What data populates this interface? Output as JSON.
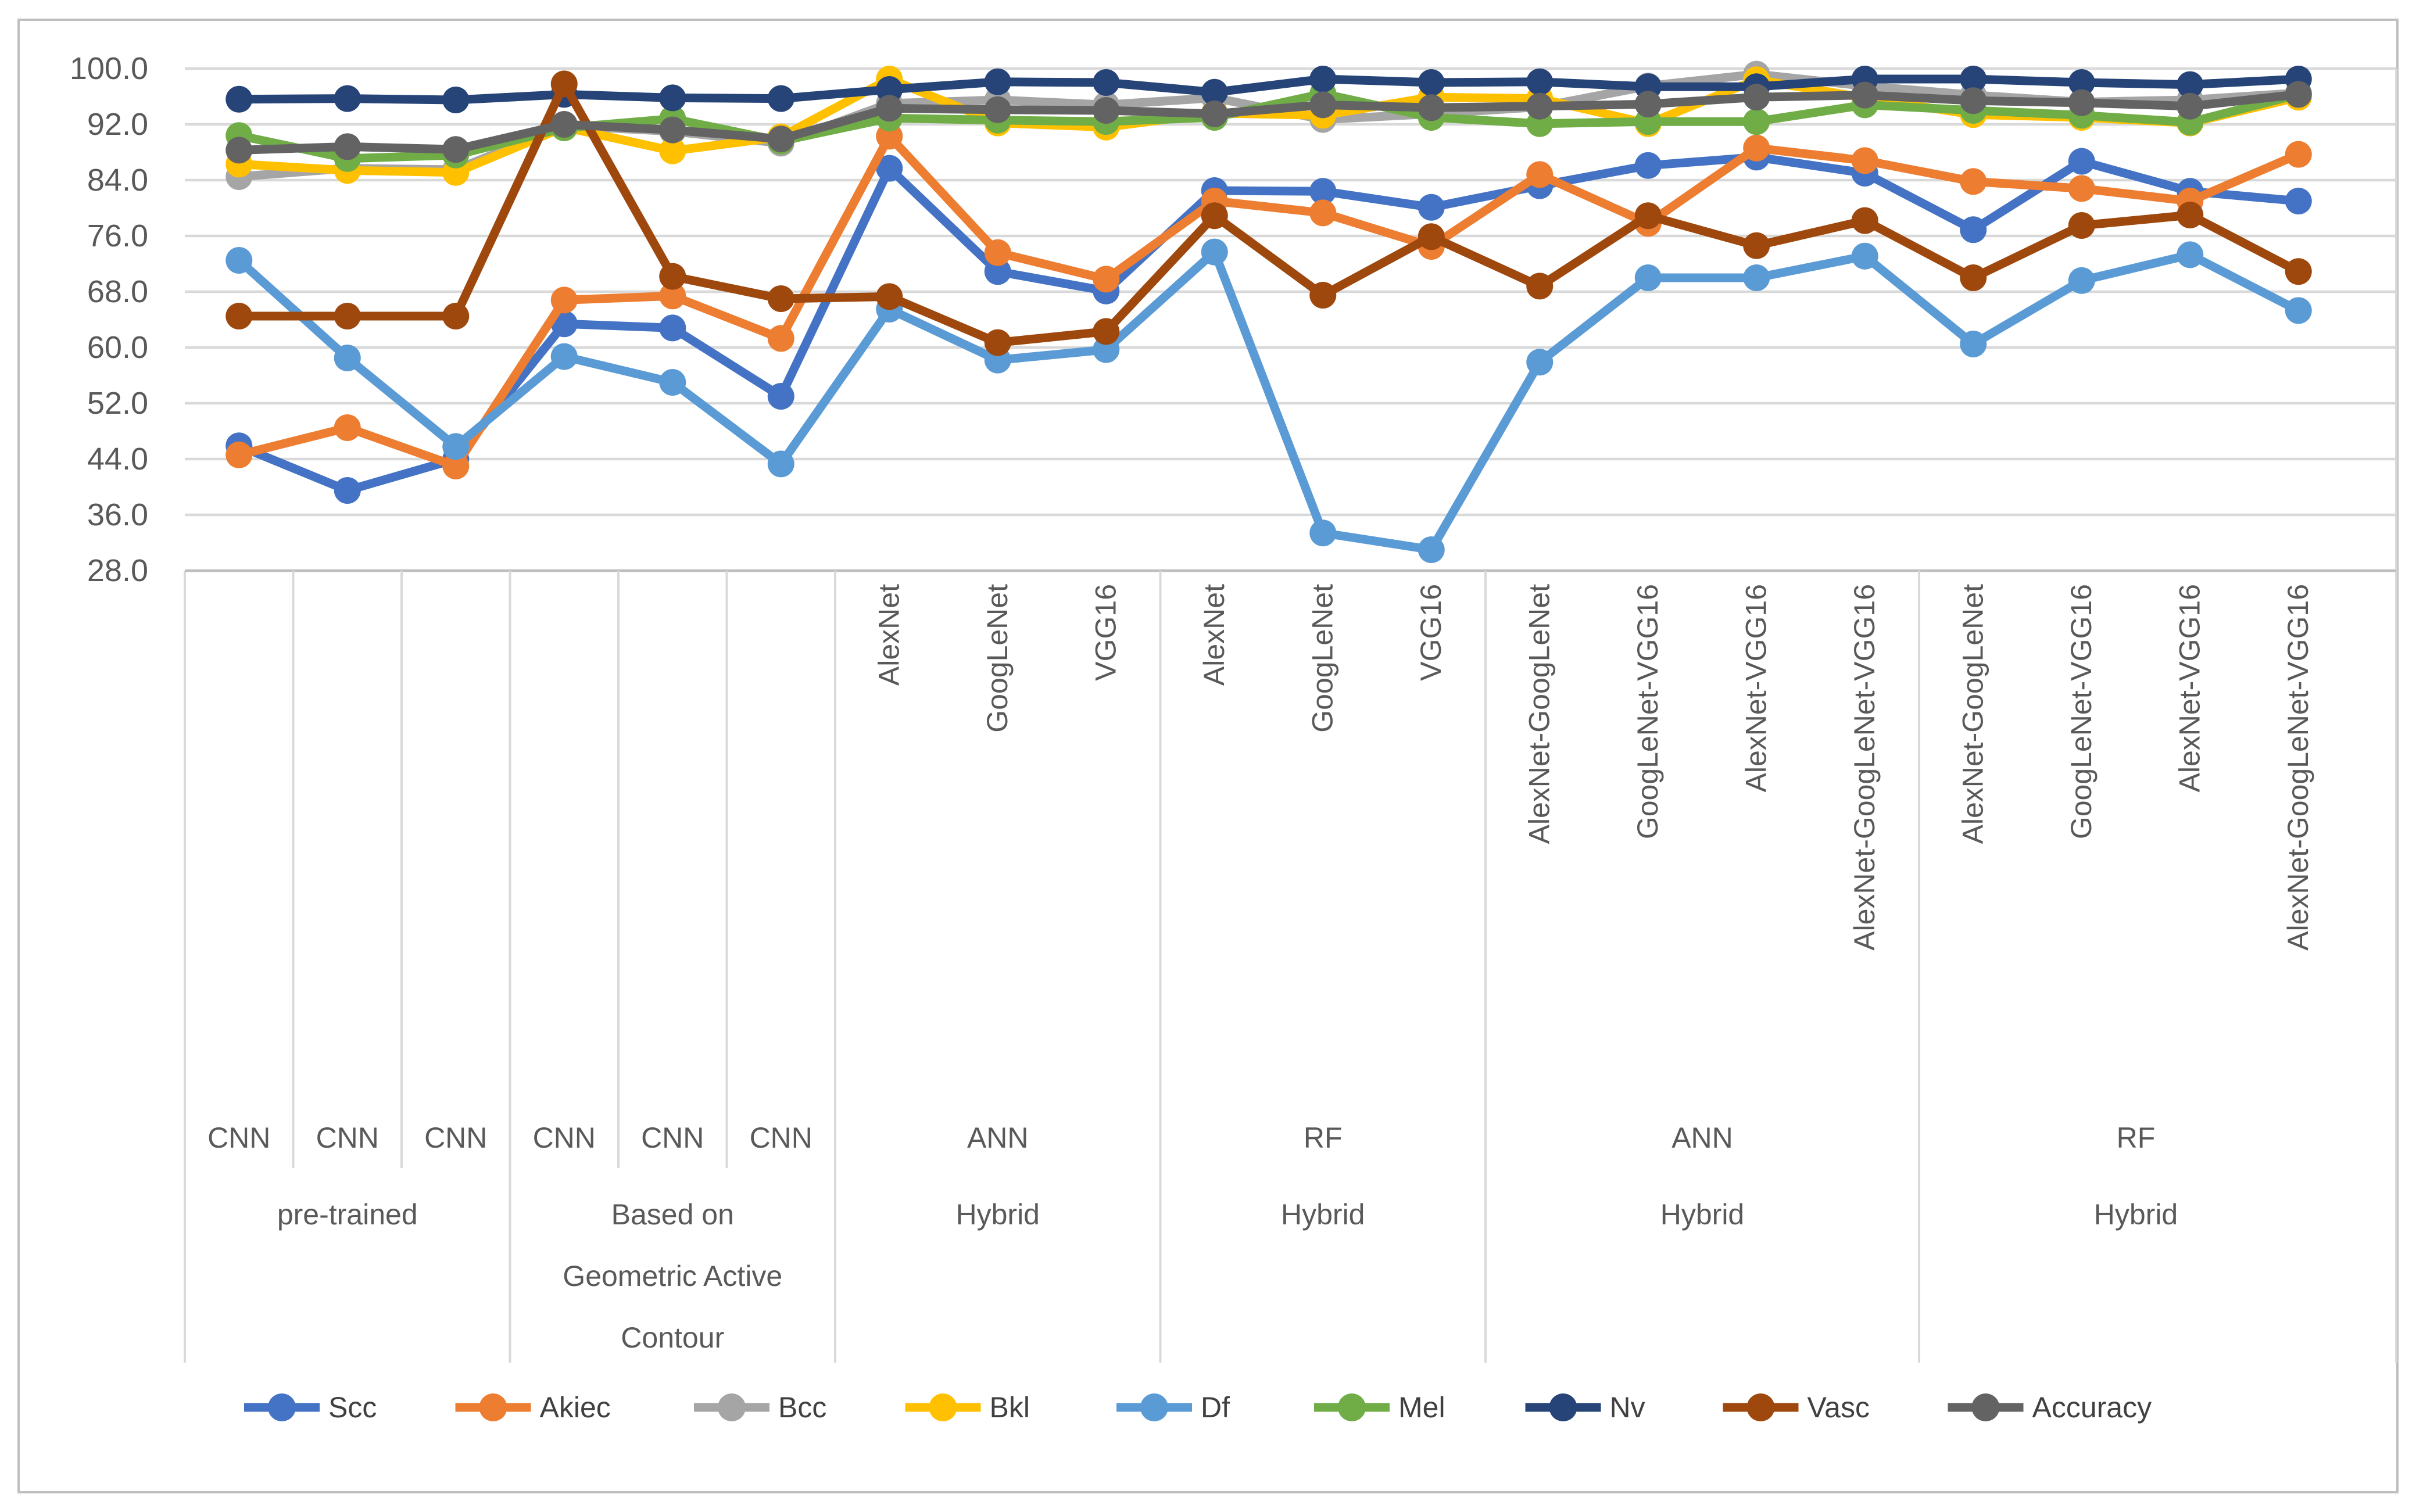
{
  "chart_data": {
    "type": "line",
    "title": "",
    "grid": true,
    "legend_position": "bottom",
    "y_axis": {
      "min": 28.0,
      "max": 100.0,
      "tick_step": 8.0,
      "tick_labels": [
        "100.0",
        "92.0",
        "84.0",
        "76.0",
        "68.0",
        "60.0",
        "52.0",
        "44.0",
        "36.0",
        "28.0"
      ]
    },
    "x_axis": {
      "tech_labels": [
        "",
        "",
        "",
        "",
        "",
        "",
        "AlexNet",
        "GoogLeNet",
        "VGG16",
        "AlexNet",
        "GoogLeNet",
        "VGG16",
        "AlexNet-GoogLeNet",
        "GoogLeNet-VGG16",
        "AlexNet-VGG16",
        "AlexNet-GoogLeNet-VGG16",
        "AlexNet-GoogLeNet",
        "GoogLeNet-VGG16",
        "AlexNet-VGG16",
        "AlexNet-GoogLeNet-VGG16"
      ],
      "algo_row": [
        {
          "label": "CNN",
          "start": 0,
          "end": 1
        },
        {
          "label": "CNN",
          "start": 1,
          "end": 2
        },
        {
          "label": "CNN",
          "start": 2,
          "end": 3
        },
        {
          "label": "CNN",
          "start": 3,
          "end": 4
        },
        {
          "label": "CNN",
          "start": 4,
          "end": 5
        },
        {
          "label": "CNN",
          "start": 5,
          "end": 6
        },
        {
          "label": "ANN",
          "start": 6,
          "end": 9
        },
        {
          "label": "RF",
          "start": 9,
          "end": 12
        },
        {
          "label": "ANN",
          "start": 12,
          "end": 16
        },
        {
          "label": "RF",
          "start": 16,
          "end": 20
        }
      ],
      "group_row": [
        {
          "lines": [
            "pre-trained"
          ],
          "start": 0,
          "end": 3
        },
        {
          "lines": [
            "Based on",
            "Geometric Active",
            "Contour"
          ],
          "start": 3,
          "end": 6
        },
        {
          "lines": [
            "Hybrid"
          ],
          "start": 6,
          "end": 9
        },
        {
          "lines": [
            "Hybrid"
          ],
          "start": 9,
          "end": 12
        },
        {
          "lines": [
            "Hybrid"
          ],
          "start": 12,
          "end": 16
        },
        {
          "lines": [
            "Hybrid"
          ],
          "start": 16,
          "end": 20
        }
      ],
      "short_separators_after_cols": [
        1,
        2,
        4,
        5
      ],
      "group_separators_after_cols": [
        3,
        6,
        9,
        12,
        16
      ]
    },
    "series": [
      {
        "name": "Scc",
        "color": "#4472C4",
        "values": [
          45.9,
          39.5,
          44.0,
          63.4,
          62.8,
          53.0,
          85.7,
          70.9,
          68.1,
          82.5,
          82.4,
          80.1,
          83.2,
          86.1,
          87.3,
          85.0,
          76.9,
          86.7,
          82.4,
          81.0
        ]
      },
      {
        "name": "Akiec",
        "color": "#ED7D31",
        "values": [
          44.6,
          48.5,
          43.0,
          66.8,
          67.4,
          61.3,
          90.3,
          73.6,
          69.8,
          81.0,
          79.3,
          74.5,
          84.8,
          77.8,
          88.6,
          86.8,
          83.8,
          82.8,
          81.0,
          87.7
        ]
      },
      {
        "name": "Bcc",
        "color": "#A5A5A5",
        "values": [
          84.5,
          85.7,
          85.5,
          91.8,
          91.0,
          89.3,
          95.0,
          95.5,
          94.8,
          95.8,
          92.7,
          93.5,
          94.5,
          97.5,
          99.2,
          97.5,
          96.2,
          95.2,
          95.5,
          96.5
        ]
      },
      {
        "name": "Bkl",
        "color": "#FFC000",
        "values": [
          86.3,
          85.4,
          85.1,
          91.6,
          88.2,
          90.2,
          98.5,
          92.2,
          91.6,
          93.6,
          93.3,
          95.9,
          95.7,
          92.1,
          98.4,
          95.8,
          93.4,
          93.0,
          92.2,
          95.9
        ]
      },
      {
        "name": "Df",
        "color": "#5B9BD5",
        "values": [
          72.5,
          58.5,
          45.8,
          58.7,
          55.0,
          43.3,
          65.5,
          58.2,
          59.7,
          73.7,
          33.4,
          31.0,
          57.9,
          70.0,
          70.0,
          73.1,
          60.5,
          69.6,
          73.3,
          65.3
        ]
      },
      {
        "name": "Mel",
        "color": "#70AD47",
        "values": [
          90.4,
          87.1,
          87.6,
          91.5,
          92.8,
          89.6,
          92.9,
          92.6,
          92.4,
          93.0,
          96.4,
          93.0,
          92.1,
          92.4,
          92.4,
          94.8,
          94.0,
          93.3,
          92.3,
          96.3
        ]
      },
      {
        "name": "Nv",
        "color": "#264478",
        "values": [
          95.6,
          95.7,
          95.5,
          96.3,
          95.8,
          95.7,
          97.0,
          98.1,
          98.0,
          96.6,
          98.5,
          98.0,
          98.1,
          97.4,
          97.4,
          98.5,
          98.5,
          98.0,
          97.7,
          98.5
        ]
      },
      {
        "name": "Vasc",
        "color": "#9E480E",
        "values": [
          64.5,
          64.5,
          64.5,
          97.8,
          70.2,
          67.0,
          67.3,
          60.7,
          62.3,
          78.9,
          67.5,
          75.9,
          68.8,
          78.9,
          74.6,
          78.2,
          70.0,
          77.5,
          79.0,
          70.9
        ]
      },
      {
        "name": "Accuracy",
        "color": "#636363",
        "values": [
          88.3,
          88.8,
          88.4,
          92.0,
          91.2,
          89.9,
          94.3,
          94.1,
          94.0,
          93.5,
          94.8,
          94.4,
          94.6,
          94.9,
          95.9,
          96.2,
          95.4,
          95.1,
          94.6,
          96.3
        ]
      }
    ],
    "legend": [
      {
        "label": "Scc",
        "color": "#4472C4"
      },
      {
        "label": "Akiec",
        "color": "#ED7D31"
      },
      {
        "label": "Bcc",
        "color": "#A5A5A5"
      },
      {
        "label": "Bkl",
        "color": "#FFC000"
      },
      {
        "label": "Df",
        "color": "#5B9BD5"
      },
      {
        "label": "Mel",
        "color": "#70AD47"
      },
      {
        "label": "Nv",
        "color": "#264478"
      },
      {
        "label": "Vasc",
        "color": "#9E480E"
      },
      {
        "label": "Accuracy",
        "color": "#636363"
      }
    ],
    "colors": {
      "gridline": "#D9D9D9",
      "separator": "#D9D9D9",
      "axis_line": "#BFBFBF",
      "outer_border": "#BFBFBF",
      "tick_text": "#595959",
      "legend_text": "#404040",
      "background": "#FFFFFF"
    }
  }
}
